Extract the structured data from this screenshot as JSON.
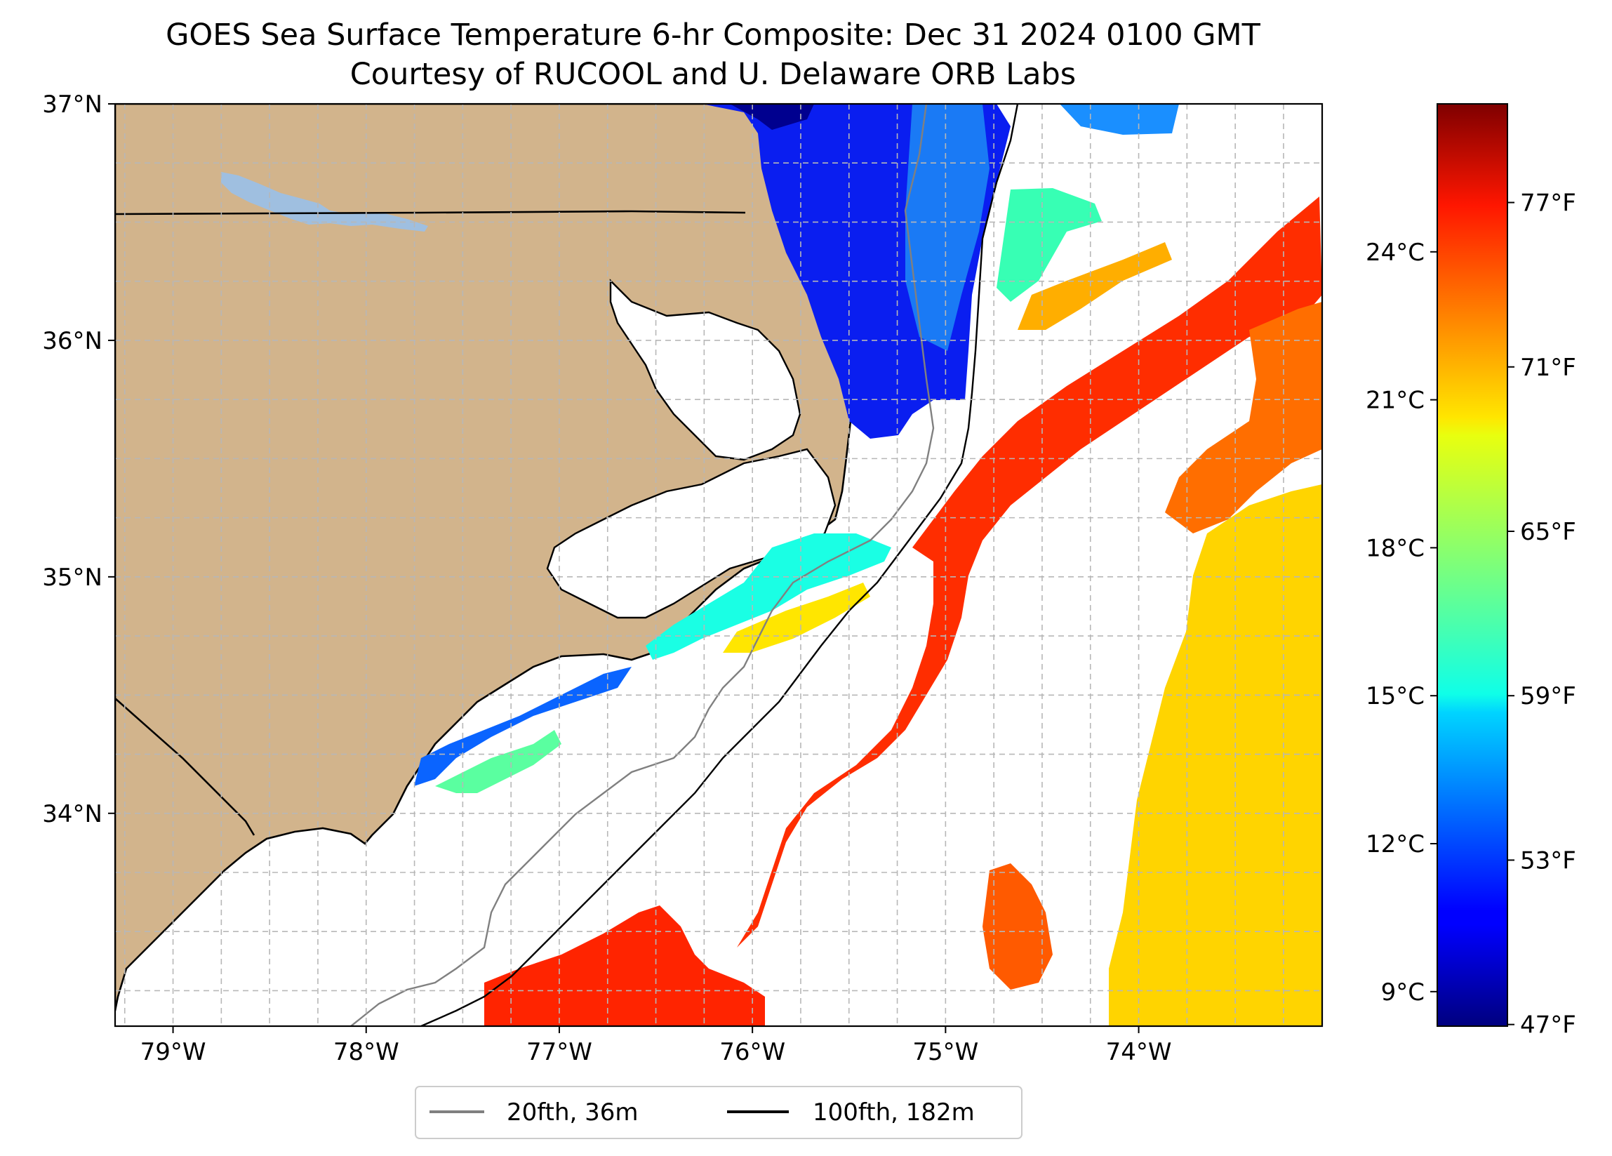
{
  "title": {
    "line1": "GOES Sea Surface Temperature 6-hr Composite: Dec 31 2024 0100 GMT",
    "line2": "Courtesy of RUCOOL and U. Delaware ORB Labs"
  },
  "map": {
    "lon_range": [
      -79.3,
      -73.05
    ],
    "lat_range": [
      33.1,
      37.0
    ],
    "longitude_ticks": [
      {
        "value": -79,
        "label": "79°W"
      },
      {
        "value": -78,
        "label": "78°W"
      },
      {
        "value": -77,
        "label": "77°W"
      },
      {
        "value": -76,
        "label": "76°W"
      },
      {
        "value": -75,
        "label": "75°W"
      },
      {
        "value": -74,
        "label": "74°W"
      }
    ],
    "latitude_ticks": [
      {
        "value": 37,
        "label": "37°N"
      },
      {
        "value": 36,
        "label": "36°N"
      },
      {
        "value": 35,
        "label": "35°N"
      },
      {
        "value": 34,
        "label": "34°N"
      }
    ],
    "colors": {
      "land": "#d2b48c",
      "ocean_no_data": "#ffffff",
      "lake": "#9fbfe0",
      "isobath_20fth": "#808080",
      "isobath_100fth": "#000000",
      "boundary": "#000000",
      "grid": "#b7b7b7"
    }
  },
  "legend": {
    "items": [
      {
        "label": "20fth, 36m",
        "color": "#808080"
      },
      {
        "label": "100fth, 182m",
        "color": "#000000"
      }
    ]
  },
  "colorbar": {
    "colormap": "jet",
    "celsius_range": [
      8.3,
      27.0
    ],
    "celsius_ticks": [
      {
        "value": 24,
        "label": "24°C"
      },
      {
        "value": 21,
        "label": "21°C"
      },
      {
        "value": 18,
        "label": "18°C"
      },
      {
        "value": 15,
        "label": "15°C"
      },
      {
        "value": 12,
        "label": "12°C"
      },
      {
        "value": 9,
        "label": "9°C"
      }
    ],
    "fahrenheit_ticks": [
      {
        "value": 77,
        "label": "77°F"
      },
      {
        "value": 71,
        "label": "71°F"
      },
      {
        "value": 65,
        "label": "65°F"
      },
      {
        "value": 59,
        "label": "59°F"
      },
      {
        "value": 53,
        "label": "53°F"
      },
      {
        "value": 47,
        "label": "47°F"
      }
    ]
  }
}
